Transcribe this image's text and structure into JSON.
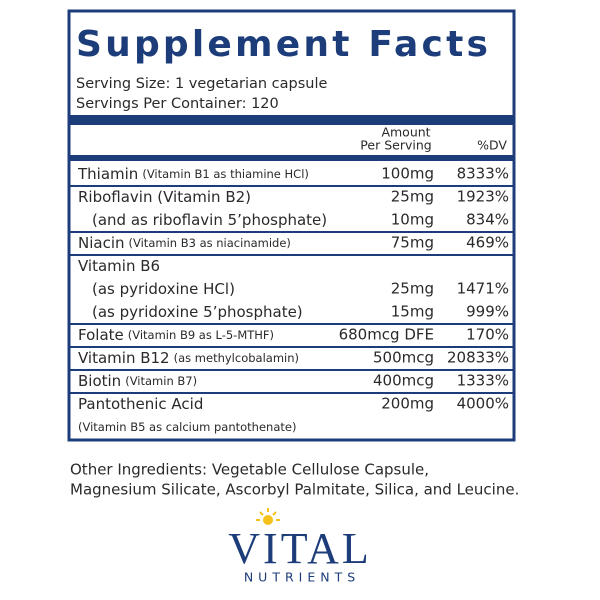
{
  "label": {
    "title": "Supplement Facts",
    "serving_size": "Serving Size: 1 vegetarian capsule",
    "servings_per_container": "Servings Per Container: 120",
    "header": {
      "amount": [
        "Amount",
        "Per Serving"
      ],
      "dv": "%DV"
    },
    "groups": [
      {
        "lines": [
          {
            "name": "Thiamin",
            "note": "(Vitamin B1 as thiamine HCl)",
            "amount": "100mg",
            "dv": "8333%"
          }
        ]
      },
      {
        "lines": [
          {
            "name": "Riboflavin (Vitamin B2)",
            "amount": "25mg",
            "dv": "1923%"
          },
          {
            "name": "(and as riboflavin 5’phosphate)",
            "amount": "10mg",
            "dv": "834%"
          }
        ]
      },
      {
        "lines": [
          {
            "name": "Niacin",
            "note": "(Vitamin B3 as niacinamide)",
            "amount": "75mg",
            "dv": "469%"
          }
        ]
      },
      {
        "lines": [
          {
            "name": "Vitamin B6"
          },
          {
            "name": "(as pyridoxine HCl)",
            "amount": "25mg",
            "dv": "1471%"
          },
          {
            "name": "(as pyridoxine 5’phosphate)",
            "amount": "15mg",
            "dv": "999%"
          }
        ]
      },
      {
        "lines": [
          {
            "name": "Folate",
            "note": "(Vitamin B9 as L-5-MTHF)",
            "amount": "680mcg DFE",
            "dv": "170%"
          }
        ]
      },
      {
        "lines": [
          {
            "name": "Vitamin B12",
            "note": "(as methylcobalamin)",
            "amount": "500mcg",
            "dv": "20833%"
          }
        ]
      },
      {
        "lines": [
          {
            "name": "Biotin",
            "note": "(Vitamin B7)",
            "amount": "400mcg",
            "dv": "1333%"
          }
        ]
      },
      {
        "lines": [
          {
            "name": "Pantothenic Acid",
            "amount": "200mg",
            "dv": "4000%"
          },
          {
            "note": "(Vitamin B5 as calcium pantothenate)"
          }
        ]
      }
    ]
  },
  "other_ingredients": [
    "Other Ingredients: Vegetable Cellulose Capsule,",
    "Magnesium Silicate, Ascorbyl Palmitate, Silica, and Leucine."
  ],
  "brand": {
    "name": "VITAL",
    "tagline": "NUTRIENTS"
  }
}
